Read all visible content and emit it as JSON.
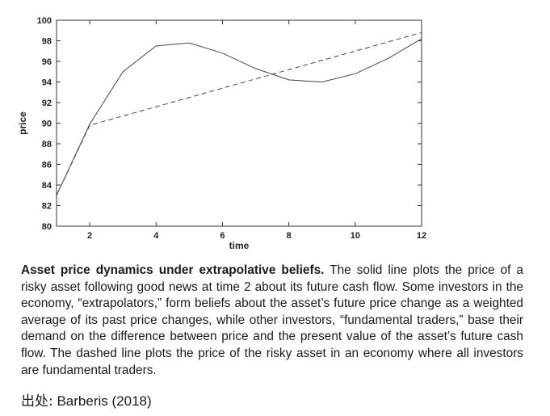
{
  "chart_data": {
    "type": "line",
    "xlabel": "time",
    "ylabel": "price",
    "xlim": [
      1,
      12
    ],
    "ylim": [
      80,
      100
    ],
    "x_ticks": [
      2,
      4,
      6,
      8,
      10,
      12
    ],
    "y_ticks": [
      80,
      82,
      84,
      86,
      88,
      90,
      92,
      94,
      96,
      98,
      100
    ],
    "grid": false,
    "series": [
      {
        "style": "solid",
        "x": [
          1,
          2,
          3,
          4,
          5,
          6,
          7,
          8,
          9,
          10,
          11,
          12
        ],
        "y": [
          83.0,
          89.9,
          95.0,
          97.5,
          97.8,
          96.8,
          95.3,
          94.2,
          94.0,
          94.8,
          96.3,
          98.2
        ]
      },
      {
        "style": "dashed",
        "x": [
          1,
          2,
          12
        ],
        "y": [
          83.0,
          89.8,
          98.8
        ]
      }
    ]
  },
  "caption": {
    "bold": "Asset price dynamics under extrapolative beliefs.",
    "text": " The solid line plots the price of a risky asset following good news at time 2 about its future cash flow. Some investors in the economy, “extrapolators,” form beliefs about the asset’s future price change as a weighted average of its past price changes, while other investors, “fundamental traders,” base their demand on the difference between price and the present value of the asset’s future cash flow. The dashed line plots the price of the risky asset in an economy where all investors are fundamental traders."
  },
  "source": {
    "prefix": "出处:",
    "text": "Barberis (2018)"
  }
}
